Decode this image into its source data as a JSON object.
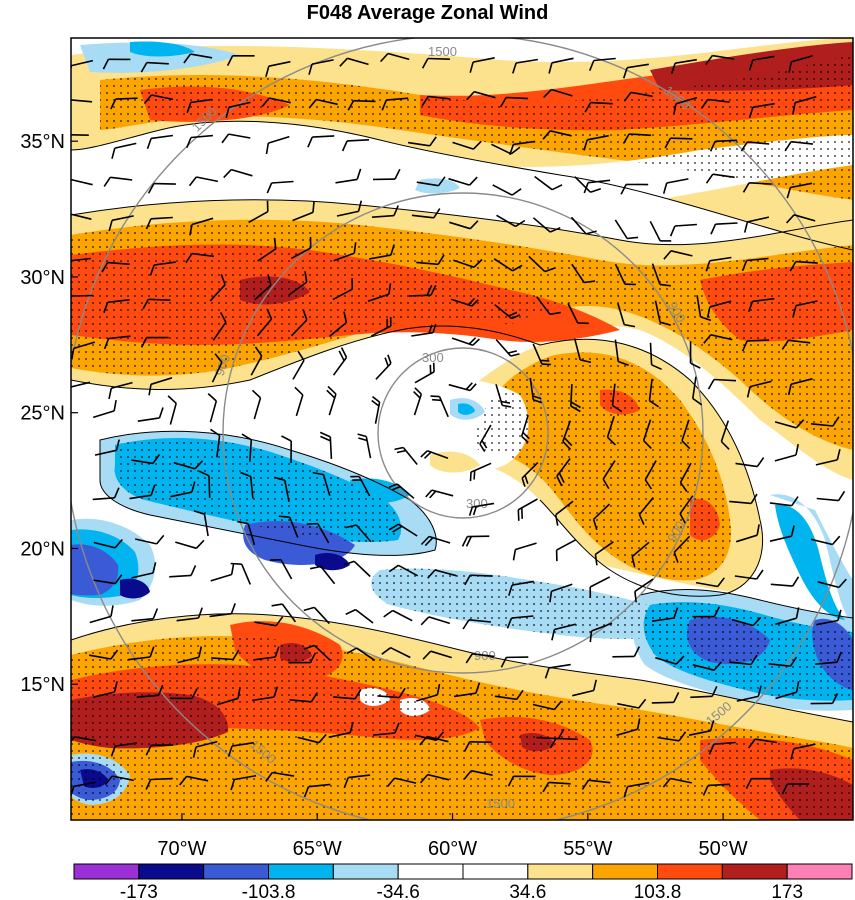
{
  "title": "F048 Average Zonal Wind",
  "map": {
    "lat_labels": [
      {
        "lat": 35,
        "text": "35°N"
      },
      {
        "lat": 30,
        "text": "30°N"
      },
      {
        "lat": 25,
        "text": "25°N"
      },
      {
        "lat": 20,
        "text": "20°N"
      },
      {
        "lat": 15,
        "text": "15°N"
      }
    ],
    "lon_labels": [
      {
        "lon": -70,
        "text": "70°W"
      },
      {
        "lon": -65,
        "text": "65°W"
      },
      {
        "lon": -60,
        "text": "60°W"
      },
      {
        "lon": -55,
        "text": "55°W"
      },
      {
        "lon": -50,
        "text": "50°W"
      }
    ],
    "lat_range": [
      10,
      38.8
    ],
    "lon_range": [
      -74.1,
      -45.2
    ],
    "radius_contours": [
      {
        "value": 300,
        "label": "300"
      },
      {
        "value": 900,
        "label": "900"
      },
      {
        "value": 1500,
        "label": "1500"
      }
    ],
    "center_label_hint": "storm center near 25°N 60°W"
  },
  "colorbar": {
    "colors": [
      "#9b30d6",
      "#0a0a8c",
      "#3a5ad6",
      "#00b4f0",
      "#a8dcf5",
      "#ffffff",
      "#ffffff",
      "#fce28c",
      "#fca500",
      "#ff4a10",
      "#b01e1e",
      "#ff80b4"
    ],
    "labels": [
      {
        "index": 1,
        "text": "-173"
      },
      {
        "index": 3,
        "text": "-103.8"
      },
      {
        "index": 5,
        "text": "-34.6"
      },
      {
        "index": 7,
        "text": "34.6"
      },
      {
        "index": 9,
        "text": "103.8"
      },
      {
        "index": 11,
        "text": "173"
      }
    ]
  },
  "colors": {
    "blue_light": "#a8dcf5",
    "blue_mid": "#00b4f0",
    "blue_dark": "#3a5ad6",
    "blue_navy": "#0a0a8c",
    "yellow": "#fce28c",
    "orange": "#fca500",
    "red": "#ff4a10",
    "dark_red": "#b01e1e",
    "contour_gray": "#8a8a8a"
  }
}
